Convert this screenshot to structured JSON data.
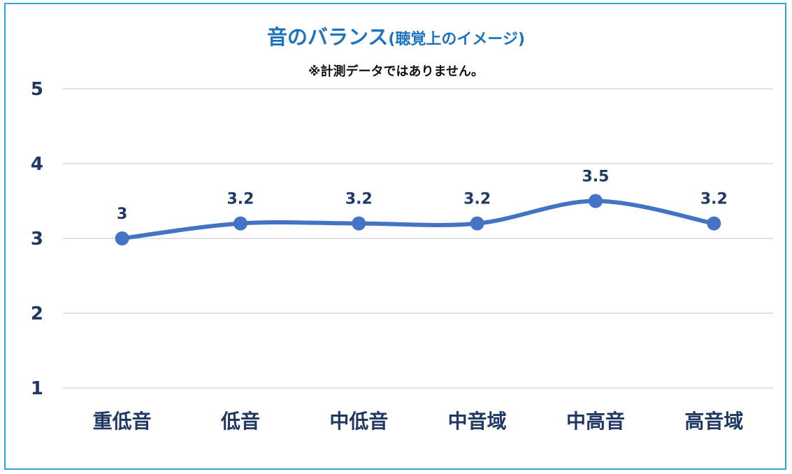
{
  "title": "音のバランス",
  "title_suffix": "(聴覚上のイメージ)",
  "subtitle": "※計測データではありません。",
  "chart_data": {
    "type": "line",
    "categories": [
      "重低音",
      "低音",
      "中低音",
      "中音域",
      "中高音",
      "高音域"
    ],
    "values": [
      3,
      3.2,
      3.2,
      3.2,
      3.5,
      3.2
    ],
    "data_labels": [
      "3",
      "3.2",
      "3.2",
      "3.2",
      "3.5",
      "3.2"
    ],
    "yticks": [
      "1",
      "2",
      "3",
      "4",
      "5"
    ],
    "ylim": [
      1,
      5
    ],
    "grid": true,
    "legend": "none",
    "line_color": "#4472c4",
    "frame_color": "#2aa7e0",
    "title_color": "#1e73be",
    "label_color": "#1f3864"
  }
}
